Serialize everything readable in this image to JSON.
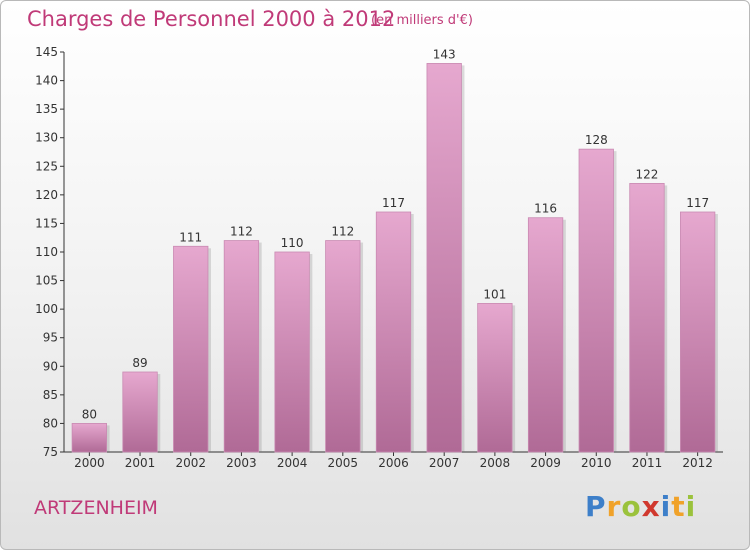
{
  "header": {
    "title": "Charges de Personnel 2000 à 2012",
    "subtitle": "(en milliers d'€)"
  },
  "footer": {
    "commune": "ARTZENHEIM",
    "brand": "Proxiti"
  },
  "colors": {
    "title": "#c03a78",
    "bar_light": "#e6a8cf",
    "bar_dark": "#b06a96",
    "axis": "#333333"
  },
  "chart_data": {
    "type": "bar",
    "title": "Charges de Personnel 2000 à 2012",
    "subtitle": "(en milliers d'€)",
    "xlabel": "",
    "ylabel": "",
    "categories": [
      "2000",
      "2001",
      "2002",
      "2003",
      "2004",
      "2005",
      "2006",
      "2007",
      "2008",
      "2009",
      "2010",
      "2011",
      "2012"
    ],
    "values": [
      80,
      89,
      111,
      112,
      110,
      112,
      117,
      143,
      101,
      116,
      128,
      122,
      117
    ],
    "ylim": [
      75,
      145
    ],
    "yticks": [
      75,
      80,
      85,
      90,
      95,
      100,
      105,
      110,
      115,
      120,
      125,
      130,
      135,
      140,
      145
    ],
    "grid": false,
    "data_labels": true
  }
}
